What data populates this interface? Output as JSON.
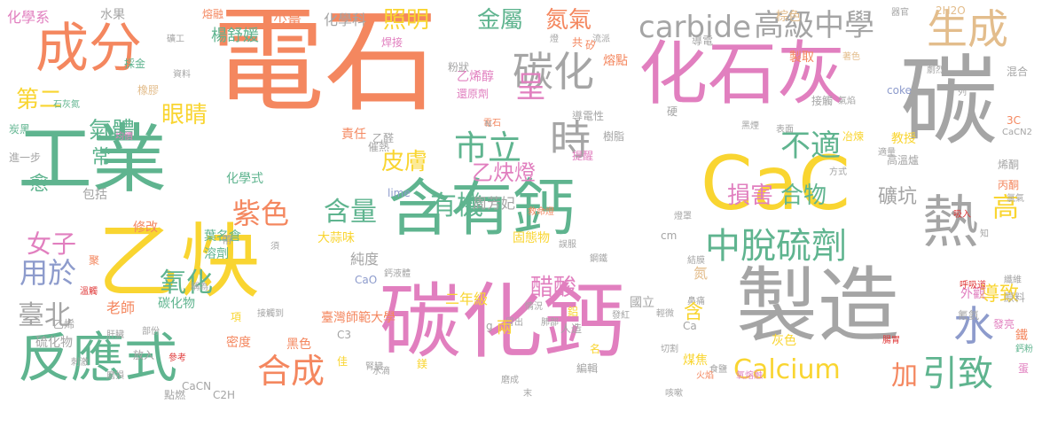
{
  "palette": {
    "orange": "#f4875f",
    "yellow": "#f9d531",
    "green": "#5fb48f",
    "pink": "#e17fbf",
    "gray": "#a5a5a5",
    "blue": "#8d9bcc",
    "tan": "#e3bd8c",
    "red": "#e03b3b"
  },
  "words": [
    {
      "text": "電石",
      "color": "orange",
      "size": 128
    },
    {
      "text": "碳化鈣",
      "color": "pink",
      "size": 92
    },
    {
      "text": "製造",
      "color": "gray",
      "size": 92
    },
    {
      "text": "乙炔",
      "color": "yellow",
      "size": 92
    },
    {
      "text": "工業",
      "color": "green",
      "size": 84
    },
    {
      "text": "含有鈣",
      "color": "green",
      "size": 70
    },
    {
      "text": "CaC",
      "color": "yellow",
      "size": 84
    },
    {
      "text": "化石灰",
      "color": "pink",
      "size": 78
    },
    {
      "text": "碳",
      "color": "gray",
      "size": 110
    },
    {
      "text": "成分",
      "color": "orange",
      "size": 60
    },
    {
      "text": "反應式",
      "color": "green",
      "size": 60
    },
    {
      "text": "熱",
      "color": "gray",
      "size": 64
    },
    {
      "text": "生成",
      "color": "tan",
      "size": 46
    },
    {
      "text": "碳化",
      "color": "gray",
      "size": 46
    },
    {
      "text": "時",
      "color": "gray",
      "size": 46
    },
    {
      "text": "carbide",
      "color": "gray",
      "size": 34
    },
    {
      "text": "高級中學",
      "color": "gray",
      "size": 34
    },
    {
      "text": "金屬",
      "color": "green",
      "size": 26
    },
    {
      "text": "照明",
      "color": "yellow",
      "size": 26
    },
    {
      "text": "氮氣",
      "color": "orange",
      "size": 26
    },
    {
      "text": "呈",
      "color": "pink",
      "size": 34
    },
    {
      "text": "市立",
      "color": "green",
      "size": 38
    },
    {
      "text": "不適",
      "color": "green",
      "size": 34
    },
    {
      "text": "中脫硫劑",
      "color": "green",
      "size": 40
    },
    {
      "text": "水",
      "color": "blue",
      "size": 46
    },
    {
      "text": "引致",
      "color": "green",
      "size": 40
    },
    {
      "text": "Calcium",
      "color": "yellow",
      "size": 30
    },
    {
      "text": "合成",
      "color": "orange",
      "size": 38
    },
    {
      "text": "含量",
      "color": "green",
      "size": 30
    },
    {
      "text": "紫色",
      "color": "orange",
      "size": 32
    },
    {
      "text": "有機",
      "color": "green",
      "size": 30
    },
    {
      "text": "損害",
      "color": "pink",
      "size": 26
    },
    {
      "text": "合物",
      "color": "green",
      "size": 26
    },
    {
      "text": "礦坑",
      "color": "gray",
      "size": 22
    },
    {
      "text": "高",
      "color": "yellow",
      "size": 30
    },
    {
      "text": "氣體",
      "color": "green",
      "size": 26
    },
    {
      "text": "眼睛",
      "color": "yellow",
      "size": 26
    },
    {
      "text": "第二",
      "color": "yellow",
      "size": 26
    },
    {
      "text": "皮膚",
      "color": "yellow",
      "size": 26
    },
    {
      "text": "乙炔燈",
      "color": "pink",
      "size": 24
    },
    {
      "text": "女子",
      "color": "pink",
      "size": 28
    },
    {
      "text": "用於",
      "color": "blue",
      "size": 32
    },
    {
      "text": "氧化",
      "color": "green",
      "size": 30
    },
    {
      "text": "臺北",
      "color": "gray",
      "size": 30
    },
    {
      "text": "醋酸",
      "color": "pink",
      "size": 26
    },
    {
      "text": "加",
      "color": "orange",
      "size": 30
    },
    {
      "text": "導致",
      "color": "yellow",
      "size": 22
    },
    {
      "text": "常",
      "color": "green",
      "size": 22
    },
    {
      "text": "愈",
      "color": "green",
      "size": 22
    },
    {
      "text": "化學系",
      "color": "pink",
      "size": 16
    },
    {
      "text": "楊舒媛",
      "color": "green",
      "size": 18
    },
    {
      "text": "少量",
      "color": "orange",
      "size": 16
    },
    {
      "text": "化學科",
      "color": "gray",
      "size": 16
    },
    {
      "text": "水果",
      "color": "gray",
      "size": 14
    },
    {
      "text": "熔融",
      "color": "orange",
      "size": 12
    },
    {
      "text": "棕色",
      "color": "tan",
      "size": 14
    },
    {
      "text": "器官",
      "color": "gray",
      "size": 10
    },
    {
      "text": "2H2O",
      "color": "tan",
      "size": 12
    },
    {
      "text": "碳化物",
      "color": "green",
      "size": 14
    },
    {
      "text": "二年級",
      "color": "yellow",
      "size": 16
    },
    {
      "text": "臺灣師範大學",
      "color": "orange",
      "size": 14
    },
    {
      "text": "周芳妃",
      "color": "gray",
      "size": 16
    },
    {
      "text": "純度",
      "color": "gray",
      "size": 16
    },
    {
      "text": "固態物",
      "color": "yellow",
      "size": 14
    },
    {
      "text": "國立",
      "color": "gray",
      "size": 14
    },
    {
      "text": "老師",
      "color": "orange",
      "size": 16
    },
    {
      "text": "硫化物",
      "color": "gray",
      "size": 14
    },
    {
      "text": "密度",
      "color": "orange",
      "size": 14
    },
    {
      "text": "黑色",
      "color": "orange",
      "size": 14
    },
    {
      "text": "修改",
      "color": "orange",
      "size": 14
    },
    {
      "text": "葉名倉",
      "color": "green",
      "size": 14
    },
    {
      "text": "溶劑",
      "color": "green",
      "size": 14
    },
    {
      "text": "大蒜味",
      "color": "yellow",
      "size": 14
    },
    {
      "text": "包括",
      "color": "gray",
      "size": 14
    },
    {
      "text": "炭黑",
      "color": "green",
      "size": 12
    },
    {
      "text": "進一步",
      "color": "gray",
      "size": 12
    },
    {
      "text": "化學式",
      "color": "green",
      "size": 14
    },
    {
      "text": "石灰氮",
      "color": "green",
      "size": 10
    },
    {
      "text": "責任",
      "color": "orange",
      "size": 14
    },
    {
      "text": "催熱",
      "color": "gray",
      "size": 12
    },
    {
      "text": "教授",
      "color": "yellow",
      "size": 14
    },
    {
      "text": "高溫爐",
      "color": "gray",
      "size": 12
    },
    {
      "text": "方式",
      "color": "gray",
      "size": 10
    },
    {
      "text": "烯酮",
      "color": "gray",
      "size": 12
    },
    {
      "text": "丙酮",
      "color": "orange",
      "size": 12
    },
    {
      "text": "氯氣",
      "color": "gray",
      "size": 10
    },
    {
      "text": "3C",
      "color": "orange",
      "size": 12
    },
    {
      "text": "CaCN2",
      "color": "gray",
      "size": 10
    },
    {
      "text": "混合",
      "color": "gray",
      "size": 12
    },
    {
      "text": "鐵",
      "color": "orange",
      "size": 14
    },
    {
      "text": "纖維",
      "color": "gray",
      "size": 10
    },
    {
      "text": "原料",
      "color": "gray",
      "size": 12
    },
    {
      "text": "外觀",
      "color": "pink",
      "size": 14
    },
    {
      "text": "氰氨",
      "color": "gray",
      "size": 12
    },
    {
      "text": "蛋",
      "color": "pink",
      "size": 12
    },
    {
      "text": "鈣粉",
      "color": "green",
      "size": 10
    },
    {
      "text": "發亮",
      "color": "pink",
      "size": 12
    },
    {
      "text": "腸胃",
      "color": "red",
      "size": 10
    },
    {
      "text": "電石",
      "color": "orange",
      "size": 10
    },
    {
      "text": "乙烯醇",
      "color": "pink",
      "size": 14
    },
    {
      "text": "還原劑",
      "color": "pink",
      "size": 12
    },
    {
      "text": "粉狀",
      "color": "gray",
      "size": 12
    },
    {
      "text": "導電性",
      "color": "gray",
      "size": 12
    },
    {
      "text": "熔點",
      "color": "orange",
      "size": 14
    },
    {
      "text": "導電",
      "color": "gray",
      "size": 12
    },
    {
      "text": "製取",
      "color": "orange",
      "size": 14
    },
    {
      "text": "著色",
      "color": "tan",
      "size": 10
    },
    {
      "text": "劇烈",
      "color": "gray",
      "size": 10
    },
    {
      "text": "coke",
      "color": "blue",
      "size": 12
    },
    {
      "text": "接觸",
      "color": "gray",
      "size": 12
    },
    {
      "text": "氣焰",
      "color": "gray",
      "size": 10
    },
    {
      "text": "表面",
      "color": "gray",
      "size": 10
    },
    {
      "text": "冶煉",
      "color": "yellow",
      "size": 12
    },
    {
      "text": "適量",
      "color": "gray",
      "size": 10
    },
    {
      "text": "黑煙",
      "color": "gray",
      "size": 10
    },
    {
      "text": "樹脂",
      "color": "gray",
      "size": 12
    },
    {
      "text": "提醒",
      "color": "pink",
      "size": 12
    },
    {
      "text": "硬",
      "color": "gray",
      "size": 12
    },
    {
      "text": "焊接",
      "color": "pink",
      "size": 12
    },
    {
      "text": "採金",
      "color": "green",
      "size": 12
    },
    {
      "text": "橡膠",
      "color": "tan",
      "size": 12
    },
    {
      "text": "燈",
      "color": "gray",
      "size": 10
    },
    {
      "text": "共",
      "color": "orange",
      "size": 12
    },
    {
      "text": "流派",
      "color": "gray",
      "size": 10
    },
    {
      "text": "礦工",
      "color": "gray",
      "size": 10
    },
    {
      "text": "資料",
      "color": "gray",
      "size": 10
    },
    {
      "text": "均價",
      "color": "pink",
      "size": 10
    },
    {
      "text": "乙醛",
      "color": "gray",
      "size": 12
    },
    {
      "text": "N",
      "color": "gray",
      "size": 10
    },
    {
      "text": "lime",
      "color": "blue",
      "size": 12
    },
    {
      "text": "救命燈",
      "color": "orange",
      "size": 10
    },
    {
      "text": "誤服",
      "color": "gray",
      "size": 10
    },
    {
      "text": "鋼鐵",
      "color": "gray",
      "size": 10
    },
    {
      "text": "燈罩",
      "color": "gray",
      "size": 10
    },
    {
      "text": "吸入",
      "color": "red",
      "size": 10
    },
    {
      "text": "知",
      "color": "gray",
      "size": 10
    },
    {
      "text": "cm",
      "color": "gray",
      "size": 12
    },
    {
      "text": "結膜",
      "color": "gray",
      "size": 10
    },
    {
      "text": "呼吸道",
      "color": "red",
      "size": 10
    },
    {
      "text": "鼻痛",
      "color": "gray",
      "size": 10
    },
    {
      "text": "發紅",
      "color": "gray",
      "size": 10
    },
    {
      "text": "Ca",
      "color": "gray",
      "size": 12
    },
    {
      "text": "CaO",
      "color": "blue",
      "size": 12
    },
    {
      "text": "鈣液體",
      "color": "gray",
      "size": 10
    },
    {
      "text": "情況",
      "color": "gray",
      "size": 10
    },
    {
      "text": "冒出",
      "color": "gray",
      "size": 10
    },
    {
      "text": "肺部",
      "color": "gray",
      "size": 10
    },
    {
      "text": "人造",
      "color": "gray",
      "size": 12
    },
    {
      "text": "C3",
      "color": "gray",
      "size": 12
    },
    {
      "text": "佳",
      "color": "yellow",
      "size": 12
    },
    {
      "text": "名",
      "color": "yellow",
      "size": 12
    },
    {
      "text": "編輯",
      "color": "gray",
      "size": 12
    },
    {
      "text": "煤焦",
      "color": "yellow",
      "size": 14
    },
    {
      "text": "灰色",
      "color": "yellow",
      "size": 14
    },
    {
      "text": "食鹽",
      "color": "gray",
      "size": 10
    },
    {
      "text": "火焰",
      "color": "orange",
      "size": 10
    },
    {
      "text": "切割",
      "color": "gray",
      "size": 10
    },
    {
      "text": "氧熔融",
      "color": "pink",
      "size": 10
    },
    {
      "text": "磨成",
      "color": "gray",
      "size": 10
    },
    {
      "text": "水滴",
      "color": "gray",
      "size": 10
    },
    {
      "text": "鎂",
      "color": "yellow",
      "size": 12
    },
    {
      "text": "咳嗽",
      "color": "gray",
      "size": 10
    },
    {
      "text": "CaCN",
      "color": "gray",
      "size": 12
    },
    {
      "text": "C2H",
      "color": "gray",
      "size": 12
    },
    {
      "text": "腎臟",
      "color": "gray",
      "size": 10
    },
    {
      "text": "磨損",
      "color": "gray",
      "size": 10
    },
    {
      "text": "參考",
      "color": "red",
      "size": 10
    },
    {
      "text": "刺激",
      "color": "gray",
      "size": 10
    },
    {
      "text": "肝臟",
      "color": "gray",
      "size": 10
    },
    {
      "text": "溫觸",
      "color": "red",
      "size": 10
    },
    {
      "text": "點燃",
      "color": "gray",
      "size": 12
    },
    {
      "text": "放入",
      "color": "gray",
      "size": 12
    },
    {
      "text": "乙烯",
      "color": "gray",
      "size": 12
    },
    {
      "text": "聚",
      "color": "orange",
      "size": 12
    },
    {
      "text": "部份",
      "color": "gray",
      "size": 10
    },
    {
      "text": "稱為",
      "color": "gray",
      "size": 10
    },
    {
      "text": "接觸到",
      "color": "gray",
      "size": 10
    },
    {
      "text": "須",
      "color": "gray",
      "size": 10
    },
    {
      "text": "帶",
      "color": "gray",
      "size": 12
    },
    {
      "text": "鋁",
      "color": "yellow",
      "size": 12
    },
    {
      "text": "項",
      "color": "yellow",
      "size": 12
    },
    {
      "text": "g",
      "color": "gray",
      "size": 12
    },
    {
      "text": "輕微",
      "color": "gray",
      "size": 10
    },
    {
      "text": "列",
      "color": "gray",
      "size": 10
    },
    {
      "text": "兩",
      "color": "yellow",
      "size": 18
    },
    {
      "text": "末",
      "color": "gray",
      "size": 10
    },
    {
      "text": "含",
      "color": "yellow",
      "size": 22
    },
    {
      "text": "矽",
      "color": "orange",
      "size": 12
    },
    {
      "text": "氮",
      "color": "tan",
      "size": 16
    }
  ]
}
